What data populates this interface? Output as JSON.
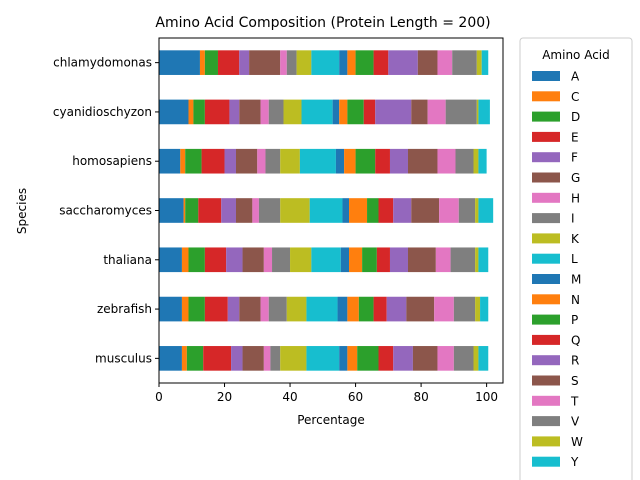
{
  "chart_data": {
    "type": "bar",
    "orientation": "horizontal",
    "stacked": true,
    "title": "Amino Acid Composition (Protein Length = 200)",
    "xlabel": "Percentage",
    "ylabel": "Species",
    "xlim": [
      0,
      105
    ],
    "xticks": [
      0,
      20,
      40,
      60,
      80,
      100
    ],
    "grid": false,
    "legend": {
      "title": "Amino Acid",
      "placement": "right-outside"
    },
    "categories": [
      "chlamydomonas",
      "cyanidioschyzon",
      "homosapiens",
      "saccharomyces",
      "thaliana",
      "zebrafish",
      "musculus"
    ],
    "series": [
      {
        "name": "A",
        "color": "#1f77b4",
        "values": [
          12.5,
          9.0,
          6.5,
          7.5,
          7.0,
          7.0,
          7.0
        ]
      },
      {
        "name": "C",
        "color": "#ff7f0e",
        "values": [
          1.5,
          1.5,
          1.5,
          0.5,
          2.0,
          2.0,
          1.5
        ]
      },
      {
        "name": "D",
        "color": "#2ca02c",
        "values": [
          4.0,
          3.5,
          5.0,
          4.0,
          5.0,
          5.0,
          5.0
        ]
      },
      {
        "name": "E",
        "color": "#d62728",
        "values": [
          6.5,
          7.5,
          7.0,
          7.0,
          6.5,
          7.0,
          8.5
        ]
      },
      {
        "name": "F",
        "color": "#9467bd",
        "values": [
          3.0,
          3.0,
          3.5,
          4.5,
          5.0,
          3.5,
          3.5
        ]
      },
      {
        "name": "G",
        "color": "#8c564b",
        "values": [
          9.5,
          6.5,
          6.5,
          5.0,
          6.5,
          6.5,
          6.5
        ]
      },
      {
        "name": "H",
        "color": "#e377c2",
        "values": [
          2.0,
          2.5,
          2.5,
          2.0,
          2.5,
          2.5,
          2.0
        ]
      },
      {
        "name": "I",
        "color": "#7f7f7f",
        "values": [
          3.0,
          4.5,
          4.5,
          6.5,
          5.5,
          5.5,
          3.0
        ]
      },
      {
        "name": "K",
        "color": "#bcbd22",
        "values": [
          4.5,
          5.5,
          6.0,
          9.0,
          6.5,
          6.0,
          8.0
        ]
      },
      {
        "name": "L",
        "color": "#17becf",
        "values": [
          8.5,
          9.5,
          11.0,
          10.0,
          9.0,
          9.5,
          10.0
        ]
      },
      {
        "name": "M",
        "color": "#1f77b4",
        "values": [
          2.5,
          2.0,
          2.5,
          2.0,
          2.5,
          3.0,
          2.5
        ]
      },
      {
        "name": "N",
        "color": "#ff7f0e",
        "values": [
          2.5,
          2.5,
          3.5,
          5.5,
          4.0,
          3.5,
          3.0
        ]
      },
      {
        "name": "P",
        "color": "#2ca02c",
        "values": [
          5.5,
          5.0,
          6.0,
          3.5,
          4.5,
          4.5,
          6.5
        ]
      },
      {
        "name": "Q",
        "color": "#d62728",
        "values": [
          4.5,
          3.5,
          4.5,
          4.5,
          4.0,
          4.0,
          4.5
        ]
      },
      {
        "name": "R",
        "color": "#9467bd",
        "values": [
          9.0,
          11.0,
          5.5,
          5.5,
          5.5,
          6.0,
          6.0
        ]
      },
      {
        "name": "S",
        "color": "#8c564b",
        "values": [
          6.0,
          5.0,
          9.0,
          8.5,
          8.5,
          8.5,
          7.5
        ]
      },
      {
        "name": "T",
        "color": "#e377c2",
        "values": [
          4.5,
          5.5,
          5.5,
          6.0,
          4.5,
          6.0,
          5.0
        ]
      },
      {
        "name": "V",
        "color": "#7f7f7f",
        "values": [
          7.5,
          9.5,
          5.5,
          5.0,
          7.5,
          6.5,
          6.0
        ]
      },
      {
        "name": "W",
        "color": "#bcbd22",
        "values": [
          1.5,
          0.5,
          1.5,
          1.0,
          1.0,
          1.5,
          1.5
        ]
      },
      {
        "name": "Y",
        "color": "#17becf",
        "values": [
          2.0,
          3.5,
          2.5,
          4.5,
          3.0,
          2.5,
          3.0
        ]
      }
    ]
  }
}
